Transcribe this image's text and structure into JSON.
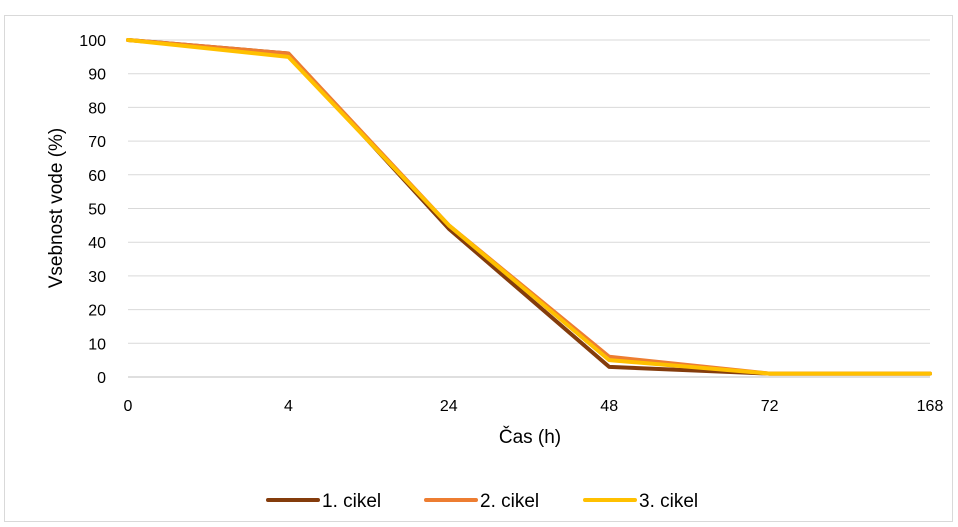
{
  "chart_data": {
    "type": "line",
    "categories": [
      "0",
      "4",
      "24",
      "48",
      "72",
      "168"
    ],
    "series": [
      {
        "name": "1. cikel",
        "color": "#843c0c",
        "values": [
          100,
          96,
          44,
          3,
          1,
          1
        ]
      },
      {
        "name": "2. cikel",
        "color": "#ed7d31",
        "values": [
          100,
          96,
          45,
          6,
          1,
          1
        ]
      },
      {
        "name": "3. cikel",
        "color": "#ffc000",
        "values": [
          100,
          95,
          45,
          5,
          1,
          1
        ]
      }
    ],
    "xlabel": "Čas (h)",
    "ylabel": "Vsebnost vode (%)",
    "ylim": [
      0,
      100
    ],
    "yticks": [
      "0",
      "10",
      "20",
      "30",
      "40",
      "50",
      "60",
      "70",
      "80",
      "90",
      "100"
    ],
    "grid": "horizontal",
    "legend_position": "bottom"
  }
}
